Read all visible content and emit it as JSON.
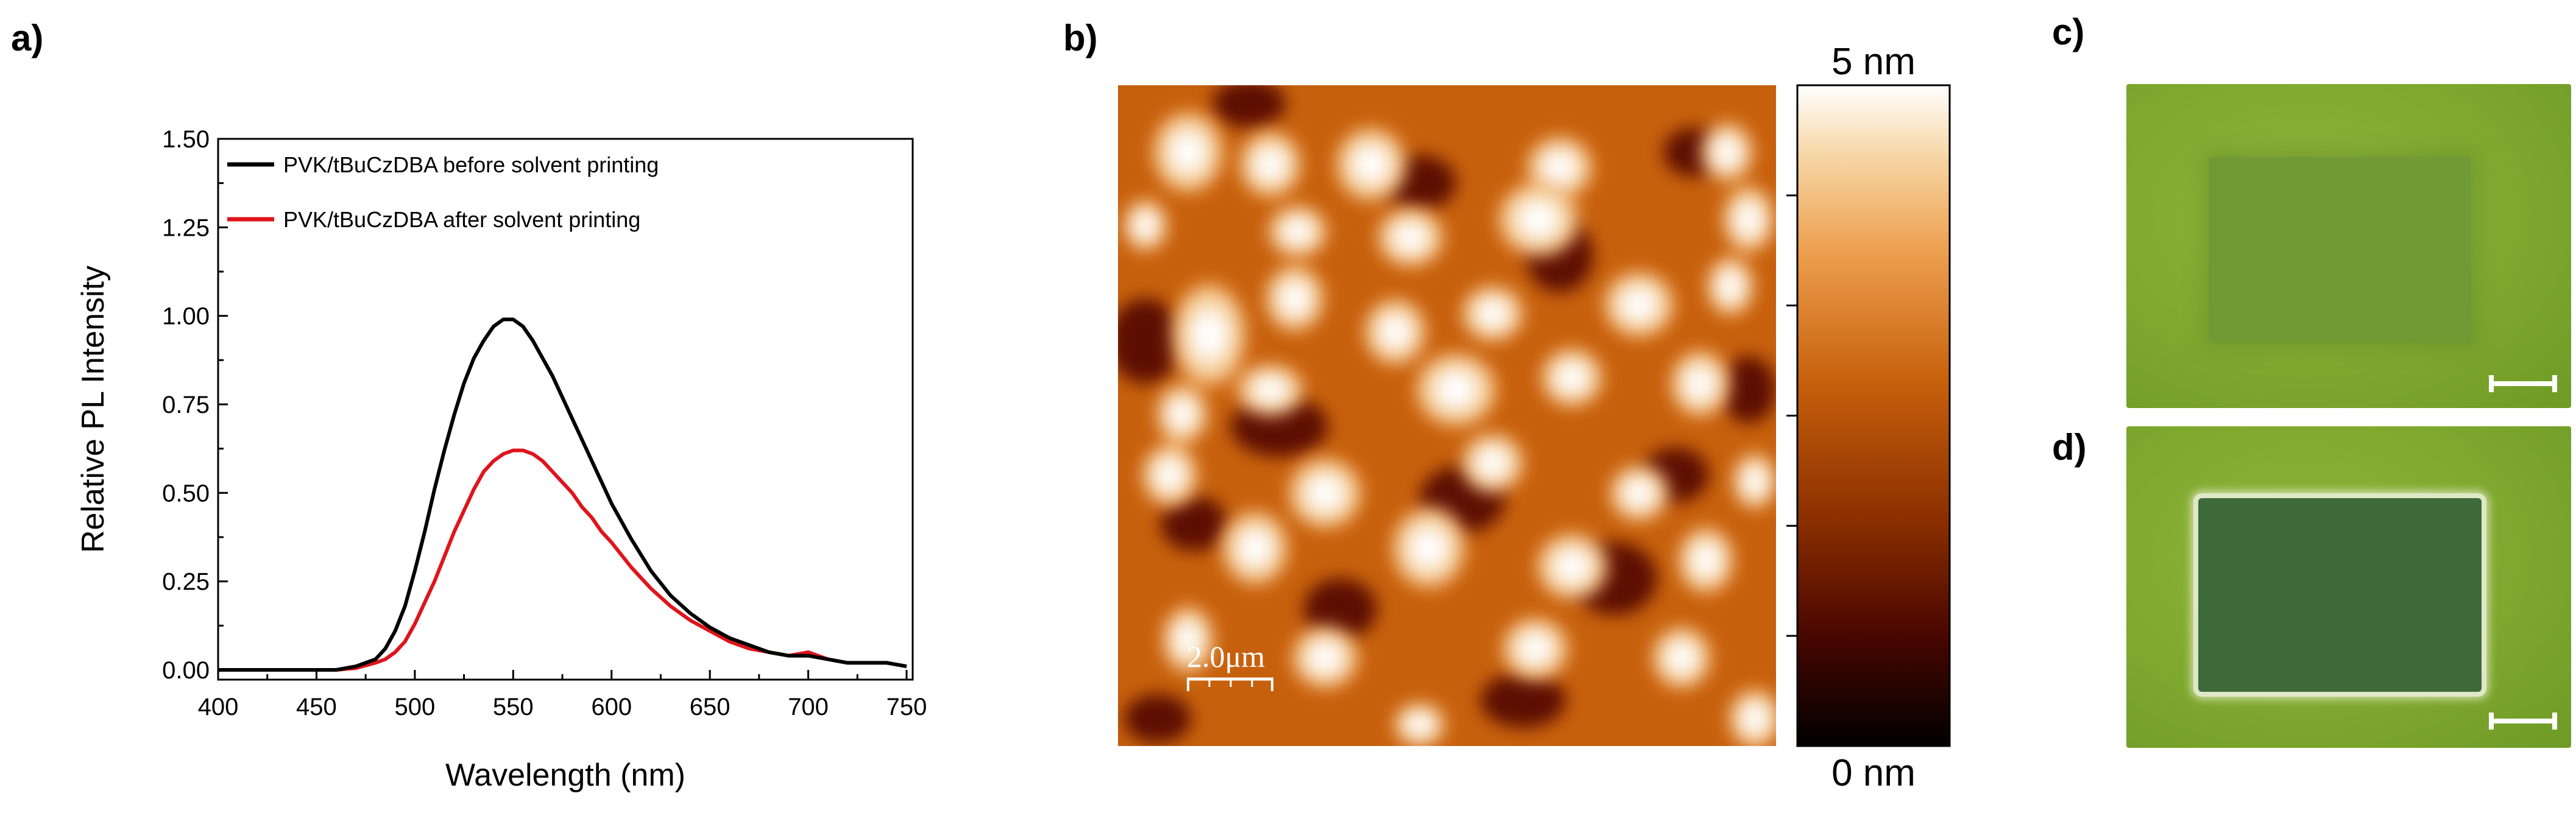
{
  "panels": {
    "a": "a)",
    "b": "b)",
    "c": "c)",
    "d": "d)"
  },
  "chart_data": {
    "type": "line",
    "xlabel": "Wavelength (nm)",
    "ylabel": "Relative PL Intensity",
    "xlim": [
      400,
      750
    ],
    "ylim": [
      0,
      1.5
    ],
    "xticks": [
      "400",
      "450",
      "500",
      "550",
      "600",
      "650",
      "700",
      "750"
    ],
    "yticks": [
      "0.00",
      "0.25",
      "0.50",
      "0.75",
      "1.00",
      "1.25",
      "1.50"
    ],
    "legend_position": "top-left",
    "series": [
      {
        "name": "PVK/tBuCzDBA before solvent printing",
        "color": "#000000",
        "x": [
          400,
          440,
          460,
          470,
          480,
          485,
          490,
          495,
          500,
          505,
          510,
          515,
          520,
          525,
          530,
          535,
          540,
          545,
          550,
          555,
          560,
          565,
          570,
          575,
          580,
          585,
          590,
          595,
          600,
          610,
          620,
          630,
          640,
          650,
          660,
          670,
          680,
          690,
          700,
          710,
          720,
          730,
          740,
          750
        ],
        "y": [
          0.0,
          0.0,
          0.0,
          0.01,
          0.03,
          0.06,
          0.11,
          0.18,
          0.28,
          0.39,
          0.51,
          0.62,
          0.72,
          0.81,
          0.88,
          0.93,
          0.97,
          0.99,
          0.99,
          0.97,
          0.93,
          0.88,
          0.83,
          0.77,
          0.71,
          0.65,
          0.59,
          0.53,
          0.47,
          0.37,
          0.28,
          0.21,
          0.16,
          0.12,
          0.09,
          0.07,
          0.05,
          0.04,
          0.04,
          0.03,
          0.02,
          0.02,
          0.02,
          0.01
        ]
      },
      {
        "name": "PVK/tBuCzDBA after solvent printing",
        "color": "#e0141c",
        "x": [
          400,
          440,
          460,
          470,
          480,
          485,
          490,
          495,
          500,
          505,
          510,
          515,
          520,
          525,
          530,
          535,
          540,
          545,
          550,
          555,
          560,
          565,
          570,
          575,
          580,
          585,
          590,
          595,
          600,
          610,
          620,
          630,
          640,
          650,
          660,
          670,
          680,
          690,
          700,
          710,
          720,
          730,
          740,
          750
        ],
        "y": [
          0.0,
          0.0,
          0.0,
          0.005,
          0.02,
          0.03,
          0.05,
          0.08,
          0.13,
          0.19,
          0.25,
          0.32,
          0.39,
          0.45,
          0.51,
          0.56,
          0.59,
          0.61,
          0.62,
          0.62,
          0.61,
          0.59,
          0.56,
          0.53,
          0.5,
          0.46,
          0.43,
          0.39,
          0.36,
          0.29,
          0.23,
          0.18,
          0.14,
          0.11,
          0.08,
          0.06,
          0.05,
          0.04,
          0.05,
          0.03,
          0.02,
          0.02,
          0.02,
          0.01
        ]
      }
    ]
  },
  "afm": {
    "scale_label": "2.0μm",
    "colorbar_max": "5 nm",
    "colorbar_min": "0 nm",
    "colors": [
      "#000000",
      "#4a0700",
      "#8a2e00",
      "#c7600c",
      "#eda04f",
      "#f7d9aa",
      "#ffffff"
    ]
  },
  "photos": {
    "background": "#7fa82f",
    "c_pattern": "#6f9a34",
    "d_pattern": "#3f6a3a"
  }
}
